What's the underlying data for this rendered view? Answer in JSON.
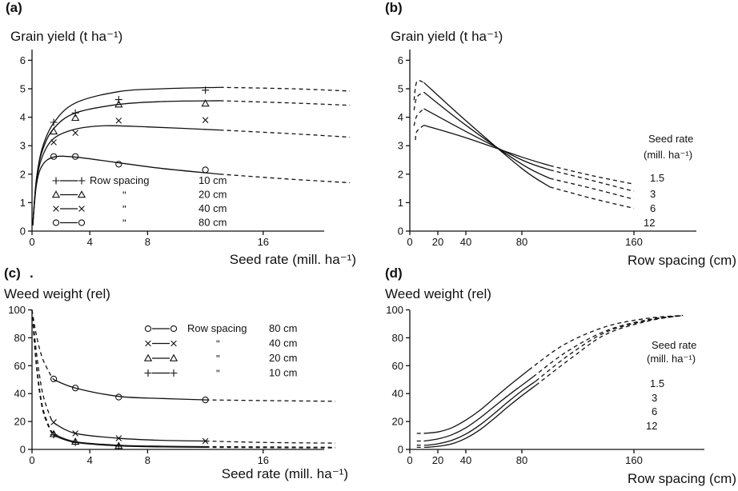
{
  "chart_data": [
    {
      "id": "a",
      "type": "line",
      "panel_label": "(a)",
      "ylabel": "Grain yield (t ha⁻¹)",
      "xlabel": "Seed rate (mill. ha⁻¹)",
      "xlim": [
        0,
        22.5
      ],
      "ylim": [
        0,
        6
      ],
      "xticks": [
        0,
        4,
        8,
        16
      ],
      "yticks": [
        0,
        1,
        2,
        3,
        4,
        5,
        6
      ],
      "legend": {
        "title": "Row spacing",
        "placement": "lower-center",
        "entries": [
          {
            "marker": "plus",
            "text": "10  cm"
          },
          {
            "marker": "triangle",
            "text": "20  cm"
          },
          {
            "marker": "cross",
            "text": "40  cm"
          },
          {
            "marker": "circle",
            "text": "80  cm"
          }
        ],
        "ditto": "\""
      },
      "series": [
        {
          "marker": "plus",
          "curve": {
            "x": [
              0.05,
              0.3,
              0.7,
              1.5,
              3,
              6,
              9,
              13
            ],
            "y": [
              0.2,
              1.8,
              2.9,
              3.8,
              4.5,
              4.9,
              5.0,
              5.05
            ]
          },
          "extension": {
            "x": [
              13,
              18,
              22
            ],
            "y": [
              5.05,
              5.0,
              4.92
            ]
          },
          "points": {
            "x": [
              1.5,
              3,
              6,
              12
            ],
            "y": [
              3.82,
              4.15,
              4.62,
              4.95
            ]
          }
        },
        {
          "marker": "triangle",
          "curve": {
            "x": [
              0.05,
              0.3,
              0.7,
              1.5,
              3,
              6,
              9,
              13
            ],
            "y": [
              0.2,
              1.8,
              2.8,
              3.6,
              4.15,
              4.45,
              4.55,
              4.58
            ]
          },
          "extension": {
            "x": [
              13,
              18,
              22
            ],
            "y": [
              4.58,
              4.5,
              4.42
            ]
          },
          "points": {
            "x": [
              1.5,
              3,
              6,
              12
            ],
            "y": [
              3.5,
              3.98,
              4.45,
              4.48
            ]
          }
        },
        {
          "marker": "cross",
          "curve": {
            "x": [
              0.05,
              0.3,
              0.7,
              1.5,
              3,
              5,
              8,
              13
            ],
            "y": [
              0.2,
              1.7,
              2.6,
              3.25,
              3.58,
              3.7,
              3.66,
              3.55
            ]
          },
          "extension": {
            "x": [
              13,
              18,
              22
            ],
            "y": [
              3.55,
              3.42,
              3.3
            ]
          },
          "points": {
            "x": [
              1.5,
              3,
              6,
              12
            ],
            "y": [
              3.12,
              3.45,
              3.88,
              3.9
            ]
          }
        },
        {
          "marker": "circle",
          "curve": {
            "x": [
              0.05,
              0.3,
              0.7,
              1.5,
              3,
              6,
              9,
              13
            ],
            "y": [
              0.2,
              1.6,
              2.3,
              2.6,
              2.6,
              2.4,
              2.2,
              2.0
            ]
          },
          "extension": {
            "x": [
              13,
              18,
              22
            ],
            "y": [
              2.0,
              1.82,
              1.7
            ]
          },
          "points": {
            "x": [
              1.5,
              3,
              6,
              12
            ],
            "y": [
              2.62,
              2.62,
              2.35,
              2.15
            ]
          }
        }
      ]
    },
    {
      "id": "b",
      "type": "line",
      "panel_label": "(b)",
      "ylabel": "Grain yield (t ha⁻¹)",
      "xlabel": "Row spacing (cm)",
      "xlim": [
        0,
        210
      ],
      "ylim": [
        0,
        6
      ],
      "xticks": [
        0,
        20,
        40,
        80,
        160
      ],
      "yticks": [
        0,
        1,
        2,
        3,
        4,
        5,
        6
      ],
      "annotation": {
        "line1": "Seed rate",
        "line2": "(mill. ha⁻¹)"
      },
      "series": [
        {
          "name": "1.5",
          "curve": {
            "x": [
              10,
              40,
              80,
              100
            ],
            "y": [
              3.72,
              3.28,
              2.6,
              2.3
            ]
          },
          "extension": {
            "x": [
              100,
              130,
              160
            ],
            "y": [
              2.3,
              1.95,
              1.65
            ]
          },
          "lead": {
            "x": [
              4,
              5,
              10
            ],
            "y": [
              3.2,
              3.5,
              3.72
            ]
          }
        },
        {
          "name": "3",
          "curve": {
            "x": [
              10,
              40,
              80,
              100
            ],
            "y": [
              4.3,
              3.5,
              2.5,
              2.15
            ]
          },
          "extension": {
            "x": [
              100,
              130,
              160
            ],
            "y": [
              2.15,
              1.78,
              1.4
            ]
          },
          "lead": {
            "x": [
              3,
              5,
              10
            ],
            "y": [
              3.7,
              4.05,
              4.3
            ]
          }
        },
        {
          "name": "6",
          "curve": {
            "x": [
              10,
              40,
              80,
              100
            ],
            "y": [
              4.88,
              3.72,
              2.35,
              1.85
            ]
          },
          "extension": {
            "x": [
              100,
              130,
              160
            ],
            "y": [
              1.85,
              1.5,
              1.12
            ]
          },
          "lead": {
            "x": [
              3,
              5,
              10
            ],
            "y": [
              4.25,
              4.7,
              4.88
            ]
          }
        },
        {
          "name": "12",
          "curve": {
            "x": [
              10,
              40,
              80,
              100
            ],
            "y": [
              5.22,
              3.88,
              2.2,
              1.55
            ]
          },
          "extension": {
            "x": [
              100,
              130,
              160
            ],
            "y": [
              1.55,
              1.15,
              0.8
            ]
          },
          "lead": {
            "x": [
              3,
              5,
              10
            ],
            "y": [
              4.6,
              5.25,
              5.22
            ]
          }
        }
      ]
    },
    {
      "id": "c",
      "type": "line",
      "panel_label": "(c)",
      "trailing_dot": ".",
      "ylabel": "Weed weight (rel)",
      "xlabel": "Seed rate (mill. ha⁻¹)",
      "xlim": [
        0,
        22.5
      ],
      "ylim": [
        0,
        100
      ],
      "xticks": [
        0,
        4,
        8,
        16
      ],
      "yticks": [
        0,
        20,
        40,
        60,
        80,
        100
      ],
      "legend": {
        "title": "Row spacing",
        "placement": "upper-right",
        "entries": [
          {
            "marker": "circle",
            "text": "80  cm"
          },
          {
            "marker": "cross",
            "text": "40  cm"
          },
          {
            "marker": "triangle",
            "text": "20  cm"
          },
          {
            "marker": "plus",
            "text": "10  cm"
          }
        ],
        "ditto": "\""
      },
      "series": [
        {
          "marker": "circle",
          "lead": {
            "x": [
              0,
              0.3,
              0.7,
              1.2,
              1.5
            ],
            "y": [
              100,
              82,
              66,
              55,
              50
            ]
          },
          "curve": {
            "x": [
              1.5,
              3,
              6,
              9,
              12
            ],
            "y": [
              50,
              44,
              38,
              36.5,
              35.5
            ]
          },
          "extension": {
            "x": [
              12,
              16,
              21
            ],
            "y": [
              35.5,
              35,
              34.5
            ]
          },
          "points": {
            "x": [
              1.5,
              3,
              6,
              12
            ],
            "y": [
              50.5,
              44,
              37.5,
              35.5
            ]
          }
        },
        {
          "marker": "cross",
          "lead": {
            "x": [
              0,
              0.3,
              0.7,
              1.2,
              1.5
            ],
            "y": [
              100,
              70,
              42,
              25,
              19
            ]
          },
          "curve": {
            "x": [
              1.5,
              3,
              6,
              9,
              12
            ],
            "y": [
              19,
              11.5,
              8,
              6.5,
              6
            ]
          },
          "extension": {
            "x": [
              12,
              16,
              21
            ],
            "y": [
              6,
              5,
              4.5
            ]
          },
          "points": {
            "x": [
              1.5,
              3,
              6,
              12
            ],
            "y": [
              19.5,
              11.5,
              8,
              6
            ]
          }
        },
        {
          "marker": "triangle",
          "lead": {
            "x": [
              0,
              0.3,
              0.7,
              1.2,
              1.5
            ],
            "y": [
              100,
              62,
              32,
              16,
              11
            ]
          },
          "curve": {
            "x": [
              1.5,
              3,
              6,
              9,
              12
            ],
            "y": [
              11,
              5.5,
              3,
              2.3,
              2
            ]
          },
          "extension": {
            "x": [
              12,
              16,
              21
            ],
            "y": [
              2,
              1.8,
              1.5
            ]
          },
          "points": {
            "x": [
              1.5,
              3,
              6
            ],
            "y": [
              11,
              5.5,
              2.5
            ]
          }
        },
        {
          "marker": "plus",
          "lead": {
            "x": [
              0,
              0.3,
              0.7,
              1.2,
              1.5
            ],
            "y": [
              100,
              60,
              30,
              15,
              10
            ]
          },
          "curve": {
            "x": [
              1.5,
              3,
              6,
              9,
              12
            ],
            "y": [
              10,
              5,
              2.5,
              1.8,
              1.5
            ]
          },
          "extension": {
            "x": [
              12,
              16,
              21
            ],
            "y": [
              1.5,
              1.3,
              1.1
            ]
          },
          "points": {
            "x": [
              1.5,
              3,
              6
            ],
            "y": [
              10.5,
              5,
              2.3
            ]
          }
        }
      ]
    },
    {
      "id": "d",
      "type": "line",
      "panel_label": "(d)",
      "ylabel": "Weed weight (rel)",
      "xlabel": "Row spacing (cm)",
      "xlim": [
        0,
        210
      ],
      "ylim": [
        0,
        100
      ],
      "xticks": [
        0,
        20,
        40,
        80,
        160
      ],
      "yticks": [
        0,
        20,
        40,
        60,
        80,
        100
      ],
      "annotation": {
        "line1": "Seed rate",
        "line2": "(mill. ha⁻¹)"
      },
      "series": [
        {
          "name": "1.5",
          "lead": {
            "x": [
              5,
              10
            ],
            "y": [
              11.5,
              11.5
            ]
          },
          "curve": {
            "x": [
              10,
              20,
              30,
              40,
              50,
              60,
              70,
              80,
              85
            ],
            "y": [
              11.5,
              12.5,
              15.5,
              21,
              28,
              36.5,
              45,
              53,
              57
            ]
          },
          "extension": {
            "x": [
              85,
              110,
              140,
              170,
              195
            ],
            "y": [
              57,
              75,
              88,
              94,
              96
            ]
          }
        },
        {
          "name": "3",
          "lead": {
            "x": [
              5,
              10
            ],
            "y": [
              6,
              6
            ]
          },
          "curve": {
            "x": [
              10,
              20,
              30,
              40,
              50,
              60,
              70,
              80,
              88
            ],
            "y": [
              6,
              7.5,
              10.5,
              15.5,
              22.5,
              30.5,
              38.5,
              46,
              52
            ]
          },
          "extension": {
            "x": [
              88,
              112,
              140,
              170,
              195
            ],
            "y": [
              52,
              70,
              85,
              93,
              96
            ]
          }
        },
        {
          "name": "6",
          "lead": {
            "x": [
              5,
              12
            ],
            "y": [
              3,
              3
            ]
          },
          "curve": {
            "x": [
              12,
              20,
              30,
              40,
              50,
              60,
              70,
              80,
              90
            ],
            "y": [
              3,
              4,
              6.5,
              11,
              17.5,
              25.5,
              34,
              42,
              49
            ]
          },
          "extension": {
            "x": [
              90,
              114,
              140,
              170,
              195
            ],
            "y": [
              49,
              68,
              84,
              92.5,
              96
            ]
          }
        },
        {
          "name": "12",
          "lead": {
            "x": [
              5,
              12
            ],
            "y": [
              1.5,
              1.5
            ]
          },
          "curve": {
            "x": [
              12,
              20,
              30,
              40,
              50,
              60,
              70,
              80,
              90
            ],
            "y": [
              1.5,
              2.2,
              4,
              8,
              14,
              22,
              30.5,
              38.5,
              46
            ]
          },
          "extension": {
            "x": [
              90,
              116,
              140,
              170,
              195
            ],
            "y": [
              46,
              66,
              82.5,
              92,
              96
            ]
          }
        }
      ]
    }
  ]
}
